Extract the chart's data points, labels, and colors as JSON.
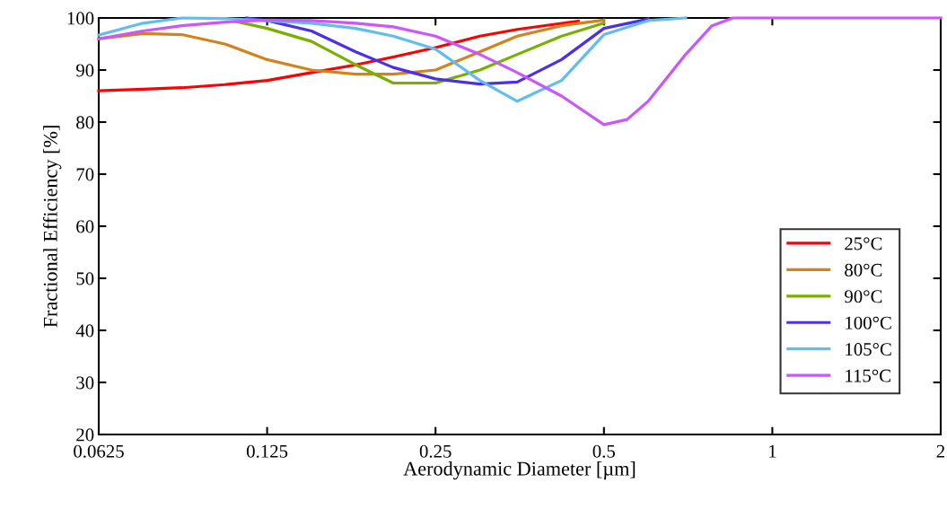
{
  "chart_data": {
    "type": "line",
    "xlabel": "Aerodynamic Diameter [µm]",
    "ylabel": "Fractional Efficiency [%]",
    "log": "x",
    "xlim": [
      0.0625,
      2
    ],
    "xticks": [
      0.0625,
      0.125,
      0.25,
      0.5,
      1,
      2
    ],
    "ylim": [
      20,
      100
    ],
    "yticks": [
      20,
      30,
      40,
      50,
      60,
      70,
      80,
      90,
      100
    ],
    "grid": false,
    "legend": "bottom right",
    "marker": "none",
    "line_style": "solid",
    "series": [
      {
        "name": "25°C",
        "color": "#ff0000",
        "x": [
          0.0625,
          0.075,
          0.088,
          0.105,
          0.125,
          0.15,
          0.18,
          0.21,
          0.25,
          0.3,
          0.35,
          0.45
        ],
        "values": [
          86,
          86.3,
          86.6,
          87.2,
          88,
          89.5,
          91,
          92.5,
          94.3,
          96.5,
          97.8,
          99.4
        ]
      },
      {
        "name": "80°C",
        "color": "#d5821a",
        "x": [
          0.0625,
          0.075,
          0.088,
          0.105,
          0.125,
          0.15,
          0.18,
          0.21,
          0.25,
          0.3,
          0.35,
          0.42,
          0.5
        ],
        "values": [
          96,
          97,
          96.8,
          95,
          92,
          90,
          89.2,
          89.2,
          90,
          93.5,
          96.5,
          98.5,
          99.6
        ]
      },
      {
        "name": "90°C",
        "color": "#78b000",
        "x": [
          0.11,
          0.125,
          0.15,
          0.18,
          0.21,
          0.25,
          0.3,
          0.35,
          0.42,
          0.5
        ],
        "values": [
          99.3,
          98,
          95.5,
          91,
          87.5,
          87.5,
          90,
          93,
          96.5,
          99
        ]
      },
      {
        "name": "100°C",
        "color": "#4a2ff0",
        "x": [
          0.115,
          0.125,
          0.15,
          0.18,
          0.21,
          0.25,
          0.3,
          0.35,
          0.42,
          0.5,
          0.6
        ],
        "values": [
          100,
          99.5,
          97.5,
          93.5,
          90.5,
          88.3,
          87.3,
          87.7,
          92,
          98,
          99.8
        ]
      },
      {
        "name": "105°C",
        "color": "#5fbdf0",
        "x": [
          0.0625,
          0.075,
          0.088,
          0.105,
          0.15,
          0.18,
          0.21,
          0.25,
          0.3,
          0.35,
          0.42,
          0.5,
          0.6,
          0.7
        ],
        "values": [
          96.7,
          99,
          100,
          99.9,
          99,
          98,
          96.5,
          94,
          88,
          84,
          88,
          96.8,
          99.5,
          100
        ]
      },
      {
        "name": "115°C",
        "color": "#cc55ff",
        "x": [
          0.0625,
          0.075,
          0.088,
          0.105,
          0.125,
          0.15,
          0.18,
          0.21,
          0.25,
          0.3,
          0.35,
          0.42,
          0.5,
          0.55,
          0.6,
          0.7,
          0.78,
          0.85,
          1,
          1.4,
          2
        ],
        "values": [
          96,
          97.5,
          98.5,
          99.2,
          99.6,
          99.5,
          99,
          98.3,
          96.5,
          93,
          89.5,
          85,
          79.5,
          80.5,
          84,
          93,
          98.5,
          100,
          100,
          100,
          100
        ]
      }
    ]
  }
}
